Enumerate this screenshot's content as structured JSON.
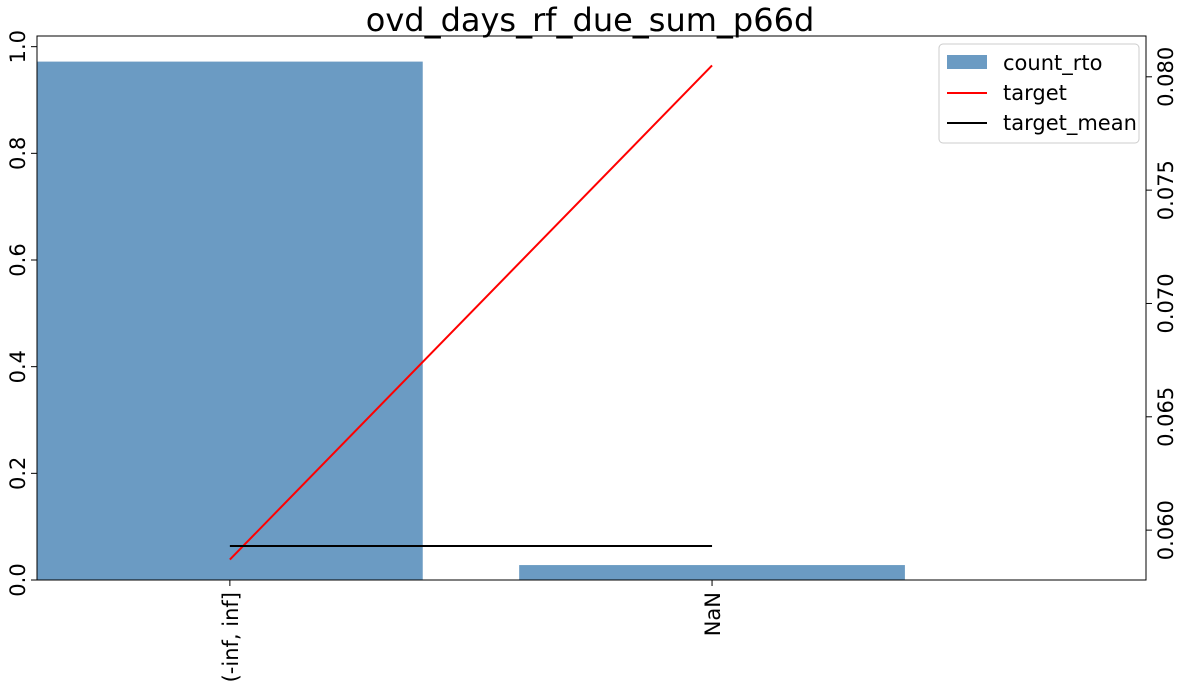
{
  "chart_data": {
    "type": "bar",
    "title": "ovd_days_rf_due_sum_p66d",
    "categories": [
      "(-inf, inf]",
      "NaN"
    ],
    "series": [
      {
        "name": "count_rto",
        "kind": "bar",
        "axis": "left",
        "values": [
          0.972,
          0.028
        ]
      },
      {
        "name": "target",
        "kind": "line",
        "axis": "right",
        "values": [
          0.0587,
          0.0805
        ]
      },
      {
        "name": "target_mean",
        "kind": "line",
        "axis": "right",
        "values": [
          0.0593,
          0.0593
        ]
      }
    ],
    "y_left": {
      "ylim": [
        0,
        1.02
      ],
      "ticks": [
        0.0,
        0.2,
        0.4,
        0.6,
        0.8,
        1.0
      ],
      "tick_labels": [
        "0.0",
        "0.2",
        "0.4",
        "0.6",
        "0.8",
        "1.0"
      ]
    },
    "y_right": {
      "ylim": [
        0.0578,
        0.0818
      ],
      "ticks": [
        0.06,
        0.065,
        0.07,
        0.075,
        0.08
      ],
      "tick_labels": [
        "0.060",
        "0.065",
        "0.070",
        "0.075",
        "0.080"
      ]
    },
    "xlabel": "",
    "ylabel": "",
    "grid": false,
    "legend_position": "top-right",
    "colors": {
      "count_rto": "#6b9bc3",
      "target": "#ff0000",
      "target_mean": "#000000"
    }
  }
}
